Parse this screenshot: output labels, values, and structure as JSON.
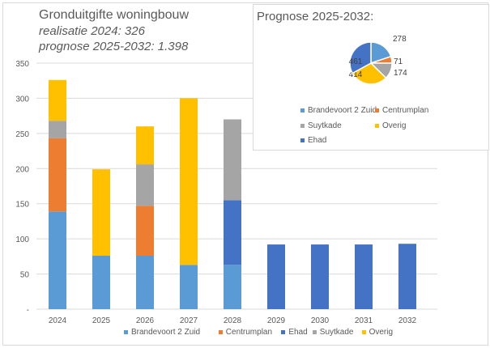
{
  "header": {
    "title": "Gronduitgifte woningbouw",
    "line1": "realisatie 2024: 326",
    "line2": "prognose 2025-2032: 1.398"
  },
  "chart_data": [
    {
      "type": "bar",
      "stacked": true,
      "categories": [
        "2024",
        "2025",
        "2026",
        "2027",
        "2028",
        "2029",
        "2030",
        "2031",
        "2032"
      ],
      "ylim": [
        0,
        350
      ],
      "yticks": [
        0,
        50,
        100,
        150,
        200,
        250,
        300,
        350
      ],
      "ytick_labels": [
        "-",
        "50",
        "100",
        "150",
        "200",
        "250",
        "300",
        "350"
      ],
      "grid": true,
      "legend": "bottom",
      "series": [
        {
          "name": "Brandevoort 2 Zuid",
          "color": "#5b9bd5",
          "values": [
            139,
            76,
            76,
            63,
            63,
            0,
            0,
            0,
            0
          ]
        },
        {
          "name": "Centrumplan",
          "color": "#ed7d31",
          "values": [
            104,
            0,
            71,
            0,
            0,
            0,
            0,
            0,
            0
          ]
        },
        {
          "name": "Ehad",
          "color": "#4472c4",
          "values": [
            0,
            0,
            0,
            0,
            92,
            92,
            92,
            92,
            93
          ]
        },
        {
          "name": "Suytkade",
          "color": "#a5a5a5",
          "values": [
            25,
            0,
            59,
            0,
            115,
            0,
            0,
            0,
            0
          ]
        },
        {
          "name": "Overig",
          "color": "#ffc000",
          "values": [
            58,
            123,
            54,
            237,
            0,
            0,
            0,
            0,
            0
          ]
        }
      ]
    },
    {
      "type": "pie",
      "title": "Prognose 2025-2032:",
      "legend": "bottom",
      "slices": [
        {
          "name": "Brandevoort 2 Zuid",
          "value": 278,
          "color": "#5b9bd5"
        },
        {
          "name": "Centrumplan",
          "value": 71,
          "color": "#ed7d31"
        },
        {
          "name": "Suytkade",
          "value": 174,
          "color": "#a5a5a5"
        },
        {
          "name": "Overig",
          "value": 414,
          "color": "#ffc000"
        },
        {
          "name": "Ehad",
          "value": 461,
          "color": "#4472c4"
        }
      ]
    }
  ]
}
